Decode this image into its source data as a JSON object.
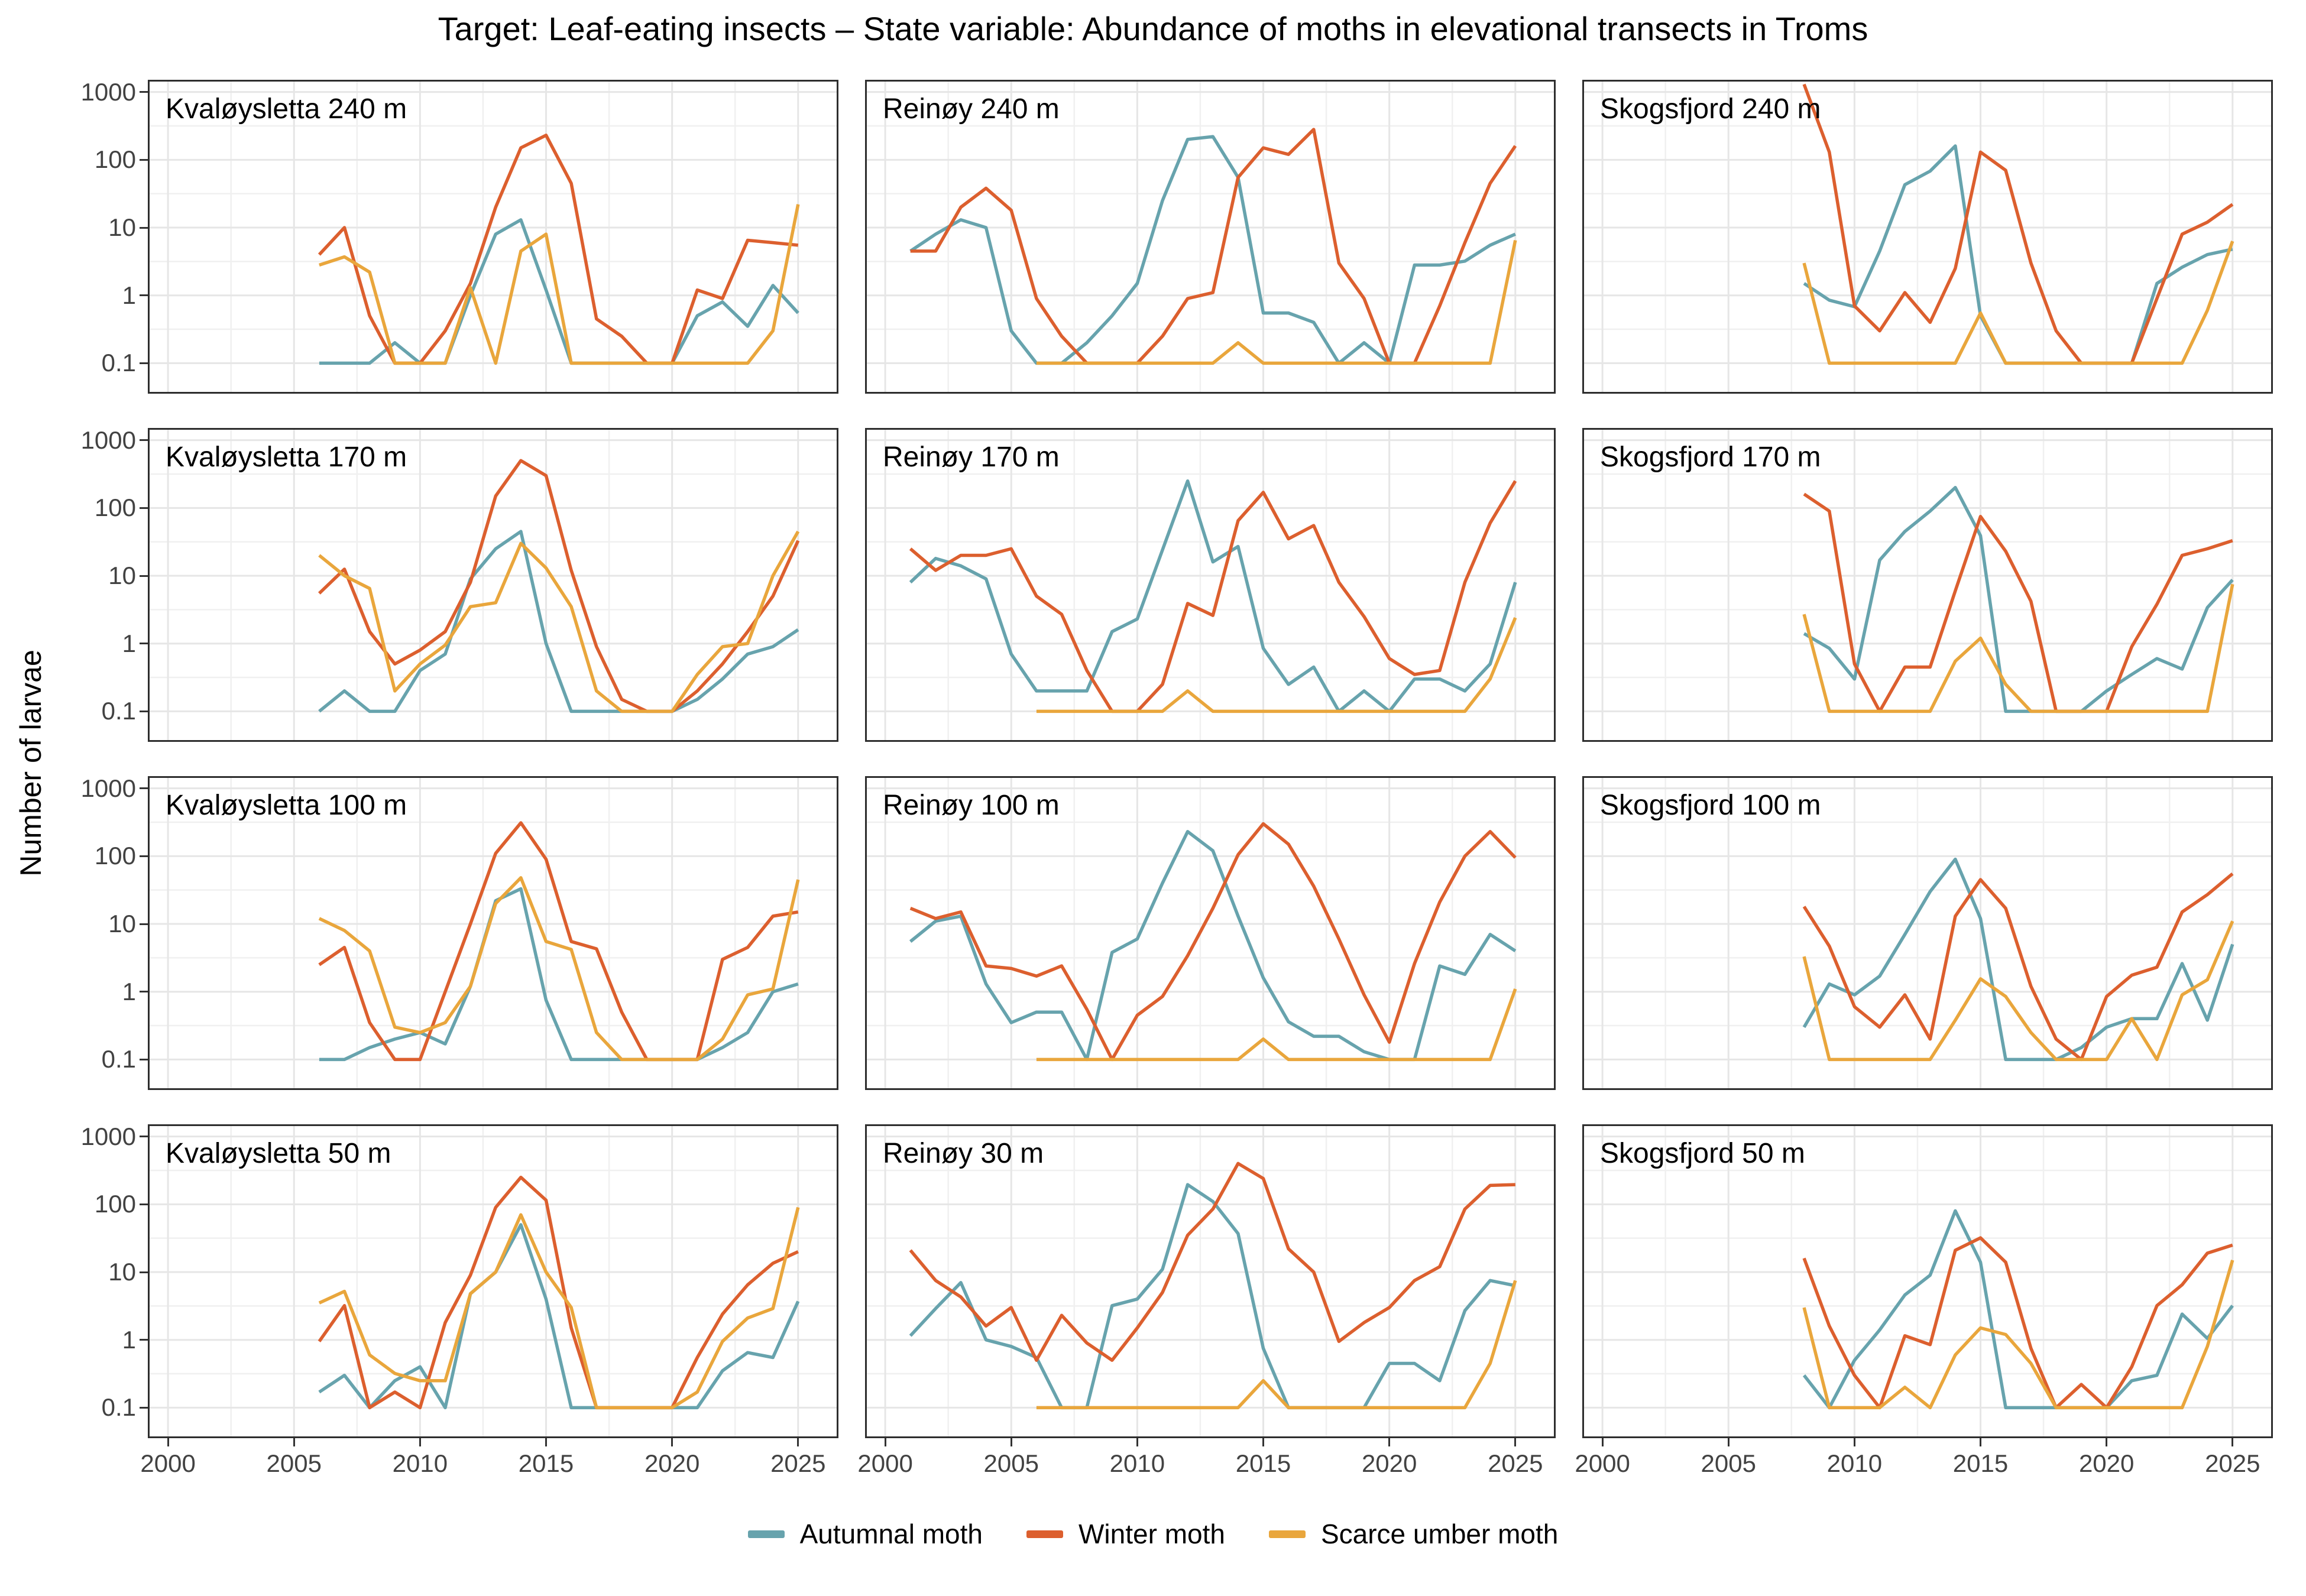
{
  "title": "Target: Leaf-eating insects – State variable: Abundance of moths in elevational transects in Troms",
  "y_axis": {
    "label": "Number of larvae",
    "tick_labels": [
      "1000",
      "100",
      "10",
      "1",
      "0.1"
    ],
    "tick_values": [
      1000,
      100,
      10,
      1,
      0.1
    ]
  },
  "x_axis": {
    "tick_labels": [
      "2000",
      "2005",
      "2010",
      "2015",
      "2020",
      "2025"
    ],
    "tick_values": [
      2000,
      2005,
      2010,
      2015,
      2020,
      2025
    ]
  },
  "legend": {
    "items": [
      {
        "key": "autumnal",
        "label": "Autumnal moth",
        "color": "#67A3AD"
      },
      {
        "key": "winter",
        "label": "Winter moth",
        "color": "#DC5F2E"
      },
      {
        "key": "scarce",
        "label": "Scarce umber moth",
        "color": "#E9A63C"
      }
    ]
  },
  "chart_config": {
    "type": "line",
    "log_scale_y": true,
    "x_domain": [
      1999.2,
      2026.6
    ],
    "y_log_domain": [
      -1.45,
      3.18
    ],
    "x_minor": [
      2002.5,
      2007.5,
      2012.5,
      2017.5,
      2022.5
    ],
    "y_minor_log": [
      2.5,
      1.5,
      0.5,
      -0.5
    ],
    "grid": true,
    "legend_position": "bottom"
  },
  "chart_data": [
    {
      "title": "Kvaløysletta 240 m",
      "series": [
        {
          "key": "autumnal",
          "start_year": 2006,
          "values": [
            0.1,
            0.1,
            0.1,
            0.2,
            0.1,
            0.1,
            1,
            8,
            13,
            1.2,
            0.1,
            0.1,
            0.1,
            0.1,
            0.1,
            0.5,
            0.8,
            0.35,
            1.4,
            0.55
          ]
        },
        {
          "key": "winter",
          "start_year": 2006,
          "values": [
            4,
            10,
            0.5,
            0.1,
            0.1,
            0.3,
            1.5,
            20,
            150,
            230,
            45,
            0.45,
            0.25,
            0.1,
            0.1,
            1.2,
            0.9,
            6.5,
            6,
            5.5
          ]
        },
        {
          "key": "scarce",
          "start_year": 2006,
          "values": [
            2.8,
            3.7,
            2.2,
            0.1,
            0.1,
            0.1,
            1.3,
            0.1,
            4.5,
            8,
            0.1,
            0.1,
            0.1,
            0.1,
            0.1,
            0.1,
            0.1,
            0.1,
            0.3,
            22
          ]
        }
      ]
    },
    {
      "title": "Reinøy 240 m",
      "series": [
        {
          "key": "autumnal",
          "start_year": 2001,
          "values": [
            4.5,
            8,
            13,
            10,
            0.3,
            0.1,
            0.1,
            0.2,
            0.5,
            1.5,
            25,
            200,
            220,
            55,
            0.55,
            0.55,
            0.4,
            0.1,
            0.2,
            0.1,
            2.8,
            2.8,
            3.2,
            5.5,
            8
          ]
        },
        {
          "key": "winter",
          "start_year": 2001,
          "values": [
            4.5,
            4.5,
            20,
            38,
            18,
            0.9,
            0.25,
            0.1,
            0.1,
            0.1,
            0.25,
            0.9,
            1.1,
            55,
            150,
            120,
            280,
            3,
            0.9,
            0.1,
            0.1,
            0.7,
            6,
            45,
            160
          ]
        },
        {
          "key": "scarce",
          "start_year": 2006,
          "values": [
            0.1,
            0.1,
            0.1,
            0.1,
            0.1,
            0.1,
            0.1,
            0.1,
            0.2,
            0.1,
            0.1,
            0.1,
            0.1,
            0.1,
            0.1,
            0.1,
            0.1,
            0.1,
            0.1,
            6.5
          ]
        }
      ]
    },
    {
      "title": "Skogsfjord 240 m",
      "series": [
        {
          "key": "autumnal",
          "start_year": 2008,
          "values": [
            1.5,
            0.85,
            0.68,
            4.5,
            43,
            68,
            160,
            0.5,
            0.1,
            0.1,
            0.1,
            0.1,
            0.1,
            0.1,
            1.5,
            2.6,
            4,
            4.8
          ]
        },
        {
          "key": "winter",
          "start_year": 2008,
          "values": [
            1300,
            130,
            0.7,
            0.3,
            1.1,
            0.4,
            2.5,
            130,
            70,
            3,
            0.3,
            0.1,
            0.1,
            0.1,
            0.9,
            8,
            12,
            22
          ]
        },
        {
          "key": "scarce",
          "start_year": 2008,
          "values": [
            3,
            0.1,
            0.1,
            0.1,
            0.1,
            0.1,
            0.1,
            0.55,
            0.1,
            0.1,
            0.1,
            0.1,
            0.1,
            0.1,
            0.1,
            0.1,
            0.6,
            6.3
          ]
        }
      ]
    },
    {
      "title": "Kvaløysletta 170 m",
      "series": [
        {
          "key": "autumnal",
          "start_year": 2006,
          "values": [
            0.1,
            0.2,
            0.1,
            0.1,
            0.4,
            0.7,
            9,
            25,
            45,
            1,
            0.1,
            0.1,
            0.1,
            0.1,
            0.1,
            0.15,
            0.3,
            0.7,
            0.9,
            1.6
          ]
        },
        {
          "key": "winter",
          "start_year": 2006,
          "values": [
            5.5,
            12.5,
            1.5,
            0.5,
            0.8,
            1.5,
            8,
            150,
            500,
            300,
            12,
            0.9,
            0.15,
            0.1,
            0.1,
            0.2,
            0.5,
            1.5,
            5,
            33
          ]
        },
        {
          "key": "scarce",
          "start_year": 2006,
          "values": [
            20,
            10,
            6.5,
            0.2,
            0.5,
            0.95,
            3.5,
            4,
            30,
            13,
            3.5,
            0.2,
            0.1,
            0.1,
            0.1,
            0.35,
            0.9,
            1,
            10,
            45
          ]
        }
      ]
    },
    {
      "title": "Reinøy 170 m",
      "series": [
        {
          "key": "autumnal",
          "start_year": 2001,
          "values": [
            8,
            18,
            14,
            9,
            0.7,
            0.2,
            0.2,
            0.2,
            1.5,
            2.3,
            24,
            250,
            16,
            27,
            0.85,
            0.25,
            0.45,
            0.1,
            0.2,
            0.1,
            0.3,
            0.3,
            0.2,
            0.5,
            8
          ]
        },
        {
          "key": "winter",
          "start_year": 2001,
          "values": [
            25,
            12,
            20,
            20,
            25,
            5,
            2.7,
            0.4,
            0.1,
            0.1,
            0.25,
            3.9,
            2.6,
            65,
            170,
            35,
            55,
            8,
            2.5,
            0.6,
            0.35,
            0.4,
            8,
            60,
            250
          ]
        },
        {
          "key": "scarce",
          "start_year": 2006,
          "values": [
            0.1,
            0.1,
            0.1,
            0.1,
            0.1,
            0.1,
            0.2,
            0.1,
            0.1,
            0.1,
            0.1,
            0.1,
            0.1,
            0.1,
            0.1,
            0.1,
            0.1,
            0.1,
            0.3,
            2.4
          ]
        }
      ]
    },
    {
      "title": "Skogsfjord 170 m",
      "series": [
        {
          "key": "autumnal",
          "start_year": 2008,
          "values": [
            1.4,
            0.85,
            0.3,
            17,
            45,
            90,
            200,
            39,
            0.1,
            0.1,
            0.1,
            0.1,
            0.2,
            0.35,
            0.6,
            0.42,
            3.4,
            8.7
          ]
        },
        {
          "key": "winter",
          "start_year": 2008,
          "values": [
            160,
            90,
            0.5,
            0.1,
            0.45,
            0.45,
            6,
            75,
            23,
            4.2,
            0.1,
            0.1,
            0.1,
            0.9,
            3.8,
            20,
            25,
            33
          ]
        },
        {
          "key": "scarce",
          "start_year": 2008,
          "values": [
            2.7,
            0.1,
            0.1,
            0.1,
            0.1,
            0.1,
            0.55,
            1.2,
            0.25,
            0.1,
            0.1,
            0.1,
            0.1,
            0.1,
            0.1,
            0.1,
            0.1,
            7.5
          ]
        }
      ]
    },
    {
      "title": "Kvaløysletta 100 m",
      "series": [
        {
          "key": "autumnal",
          "start_year": 2006,
          "values": [
            0.1,
            0.1,
            0.15,
            0.2,
            0.25,
            0.17,
            1.2,
            22,
            33,
            0.75,
            0.1,
            0.1,
            0.1,
            0.1,
            0.1,
            0.1,
            0.15,
            0.25,
            1,
            1.3
          ]
        },
        {
          "key": "winter",
          "start_year": 2006,
          "values": [
            2.5,
            4.5,
            0.35,
            0.1,
            0.1,
            1,
            10,
            110,
            310,
            90,
            5.5,
            4.3,
            0.5,
            0.1,
            0.1,
            0.1,
            3,
            4.5,
            13,
            15
          ]
        },
        {
          "key": "scarce",
          "start_year": 2006,
          "values": [
            12,
            8,
            4,
            0.3,
            0.25,
            0.35,
            1.2,
            20,
            48,
            5.5,
            4.2,
            0.25,
            0.1,
            0.1,
            0.1,
            0.1,
            0.2,
            0.9,
            1.1,
            45
          ]
        }
      ]
    },
    {
      "title": "Reinøy 100 m",
      "series": [
        {
          "key": "autumnal",
          "start_year": 2001,
          "values": [
            5.5,
            11,
            13,
            1.3,
            0.35,
            0.5,
            0.5,
            0.1,
            3.8,
            6,
            40,
            230,
            120,
            13,
            1.6,
            0.36,
            0.22,
            0.22,
            0.13,
            0.1,
            0.1,
            2.4,
            1.8,
            7,
            4
          ]
        },
        {
          "key": "winter",
          "start_year": 2001,
          "values": [
            17,
            12,
            15,
            2.4,
            2.2,
            1.7,
            2.4,
            0.55,
            0.1,
            0.45,
            0.85,
            3.4,
            17,
            105,
            300,
            150,
            36,
            6,
            0.9,
            0.18,
            2.6,
            21,
            100,
            230,
            95
          ]
        },
        {
          "key": "scarce",
          "start_year": 2006,
          "values": [
            0.1,
            0.1,
            0.1,
            0.1,
            0.1,
            0.1,
            0.1,
            0.1,
            0.1,
            0.2,
            0.1,
            0.1,
            0.1,
            0.1,
            0.1,
            0.1,
            0.1,
            0.1,
            0.1,
            1.1
          ]
        }
      ]
    },
    {
      "title": "Skogsfjord 100 m",
      "series": [
        {
          "key": "autumnal",
          "start_year": 2008,
          "values": [
            0.3,
            1.3,
            0.9,
            1.7,
            7,
            30,
            90,
            12,
            0.1,
            0.1,
            0.1,
            0.15,
            0.3,
            0.4,
            0.4,
            2.6,
            0.38,
            5
          ]
        },
        {
          "key": "winter",
          "start_year": 2008,
          "values": [
            18,
            4.7,
            0.6,
            0.3,
            0.9,
            0.2,
            13,
            45,
            17,
            1.2,
            0.2,
            0.1,
            0.85,
            1.75,
            2.3,
            15,
            27,
            55
          ]
        },
        {
          "key": "scarce",
          "start_year": 2008,
          "values": [
            3.3,
            0.1,
            0.1,
            0.1,
            0.1,
            0.1,
            0.38,
            1.55,
            0.85,
            0.25,
            0.1,
            0.1,
            0.1,
            0.4,
            0.1,
            0.9,
            1.5,
            11
          ]
        }
      ]
    },
    {
      "title": "Kvaløysletta 50 m",
      "series": [
        {
          "key": "autumnal",
          "start_year": 2006,
          "values": [
            0.17,
            0.3,
            0.1,
            0.25,
            0.4,
            0.1,
            4.8,
            10,
            50,
            4,
            0.1,
            0.1,
            0.1,
            0.1,
            0.1,
            0.1,
            0.35,
            0.65,
            0.55,
            3.7
          ]
        },
        {
          "key": "winter",
          "start_year": 2006,
          "values": [
            0.95,
            3.2,
            0.1,
            0.17,
            0.1,
            1.8,
            9,
            90,
            250,
            115,
            1.5,
            0.1,
            0.1,
            0.1,
            0.1,
            0.55,
            2.4,
            6.5,
            13.5,
            20
          ]
        },
        {
          "key": "scarce",
          "start_year": 2006,
          "values": [
            3.5,
            5.2,
            0.6,
            0.32,
            0.25,
            0.25,
            4.8,
            10,
            70,
            10,
            3,
            0.1,
            0.1,
            0.1,
            0.1,
            0.17,
            0.95,
            2.1,
            2.9,
            90
          ]
        }
      ]
    },
    {
      "title": "Reinøy 30 m",
      "series": [
        {
          "key": "autumnal",
          "start_year": 2001,
          "values": [
            1.15,
            2.9,
            7,
            1,
            0.8,
            0.55,
            0.1,
            0.1,
            3.2,
            4,
            11,
            195,
            110,
            37,
            0.75,
            0.1,
            0.1,
            0.1,
            0.1,
            0.45,
            0.45,
            0.25,
            2.7,
            7.5,
            6.3
          ]
        },
        {
          "key": "winter",
          "start_year": 2001,
          "values": [
            21,
            7.5,
            4.3,
            1.6,
            3,
            0.5,
            2.3,
            0.9,
            0.5,
            1.5,
            5,
            35,
            85,
            400,
            240,
            22,
            10,
            0.95,
            1.8,
            3,
            7.5,
            12,
            85,
            190,
            195
          ]
        },
        {
          "key": "scarce",
          "start_year": 2006,
          "values": [
            0.1,
            0.1,
            0.1,
            0.1,
            0.1,
            0.1,
            0.1,
            0.1,
            0.1,
            0.25,
            0.1,
            0.1,
            0.1,
            0.1,
            0.1,
            0.1,
            0.1,
            0.1,
            0.45,
            7.5
          ]
        }
      ]
    },
    {
      "title": "Skogsfjord 50 m",
      "series": [
        {
          "key": "autumnal",
          "start_year": 2008,
          "values": [
            0.3,
            0.1,
            0.5,
            1.4,
            4.6,
            9,
            80,
            14,
            0.1,
            0.1,
            0.1,
            0.1,
            0.1,
            0.25,
            0.3,
            2.4,
            1.05,
            3.2
          ]
        },
        {
          "key": "winter",
          "start_year": 2008,
          "values": [
            16,
            1.6,
            0.3,
            0.1,
            1.15,
            0.85,
            21,
            32,
            14,
            0.75,
            0.1,
            0.22,
            0.1,
            0.4,
            3.2,
            6.5,
            19,
            25
          ]
        },
        {
          "key": "scarce",
          "start_year": 2008,
          "values": [
            3,
            0.1,
            0.1,
            0.1,
            0.2,
            0.1,
            0.6,
            1.5,
            1.2,
            0.45,
            0.1,
            0.1,
            0.1,
            0.1,
            0.1,
            0.1,
            0.8,
            15
          ]
        }
      ]
    }
  ]
}
